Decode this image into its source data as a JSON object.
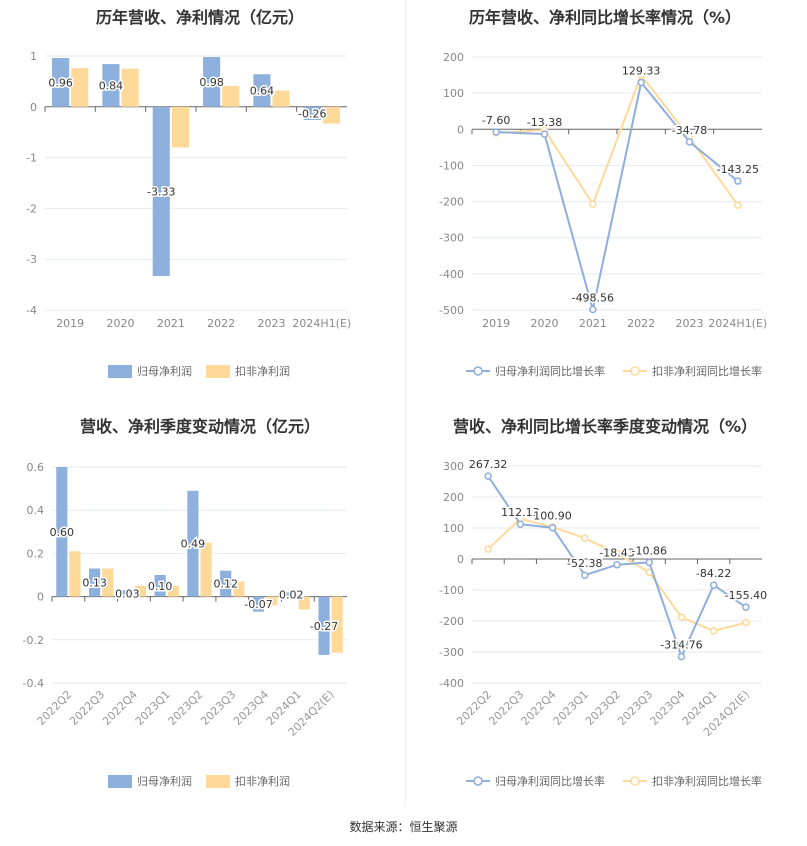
{
  "chart_data": [
    {
      "type": "bar",
      "title": "历年营收、净利情况（亿元）",
      "categories": [
        "2019",
        "2020",
        "2021",
        "2022",
        "2023",
        "2024H1(E)"
      ],
      "ylim": [
        -4,
        1
      ],
      "yticks": [
        1,
        0,
        -1,
        -2,
        -3,
        -4
      ],
      "grid": true,
      "legend": "bottom",
      "series": [
        {
          "name": "归母净利润",
          "values": [
            0.96,
            0.84,
            -3.33,
            0.98,
            0.64,
            -0.26
          ],
          "labels": [
            "0.96",
            "0.84",
            "-3.33",
            "0.98",
            "0.64",
            "-0.26"
          ],
          "color": "#8eb0dc"
        },
        {
          "name": "扣非净利润",
          "values": [
            0.76,
            0.75,
            -0.8,
            0.41,
            0.32,
            -0.33
          ],
          "color": "#ffd99a"
        }
      ]
    },
    {
      "type": "line",
      "title": "历年营收、净利同比增长率情况（%）",
      "categories": [
        "2019",
        "2020",
        "2021",
        "2022",
        "2023",
        "2024H1(E)"
      ],
      "ylim": [
        -500,
        200
      ],
      "yticks": [
        200,
        100,
        0,
        -100,
        -200,
        -300,
        -400,
        -500
      ],
      "grid": true,
      "legend": "bottom",
      "series": [
        {
          "name": "归母净利润同比增长率",
          "values": [
            -7.6,
            -13.38,
            -498.56,
            129.33,
            -34.78,
            -143.25
          ],
          "labels": [
            "-7.60",
            "-13.38",
            "-498.56",
            "129.33",
            "-34.78",
            "-143.25"
          ],
          "color": "#8eaedd"
        },
        {
          "name": "扣非净利润同比增长率",
          "values": [
            -10,
            -2,
            -207,
            150,
            -23,
            -210
          ],
          "color": "#ffd99a"
        }
      ]
    },
    {
      "type": "bar",
      "title": "营收、净利季度变动情况（亿元）",
      "categories": [
        "2022Q2",
        "2022Q3",
        "2022Q4",
        "2023Q1",
        "2023Q2",
        "2023Q3",
        "2023Q4",
        "2024Q1",
        "2024Q2(E)"
      ],
      "ylim": [
        -0.4,
        0.6
      ],
      "yticks": [
        0.6,
        0.4,
        0.2,
        0,
        -0.2,
        -0.4
      ],
      "grid": true,
      "legend": "bottom",
      "series": [
        {
          "name": "归母净利润",
          "values": [
            0.6,
            0.13,
            0.03,
            0.1,
            0.49,
            0.12,
            -0.07,
            0.02,
            -0.27
          ],
          "labels": [
            "0.60",
            "0.13",
            "0.03",
            "0.10",
            "0.49",
            "0.12",
            "-0.07",
            "0.02",
            "-0.27"
          ],
          "color": "#8eb0dc"
        },
        {
          "name": "扣非净利润",
          "values": [
            0.21,
            0.13,
            0.05,
            0.05,
            0.25,
            0.07,
            -0.04,
            -0.06,
            -0.26
          ],
          "color": "#ffd99a"
        }
      ]
    },
    {
      "type": "line",
      "title": "营收、净利同比增长率季度变动情况（%）",
      "categories": [
        "2022Q2",
        "2022Q3",
        "2022Q4",
        "2023Q1",
        "2023Q2",
        "2023Q3",
        "2023Q4",
        "2024Q1",
        "2024Q2(E)"
      ],
      "ylim": [
        -400,
        300
      ],
      "yticks": [
        300,
        200,
        100,
        0,
        -100,
        -200,
        -300,
        -400
      ],
      "grid": true,
      "legend": "bottom",
      "series": [
        {
          "name": "归母净利润同比增长率",
          "values": [
            267.32,
            112.13,
            100.9,
            -52.38,
            -18.43,
            -10.86,
            -314.76,
            -84.22,
            -155.4
          ],
          "labels": [
            "267.32",
            "112.13",
            "100.90",
            "-52.38",
            "-18.43",
            "-10.86",
            "-314.76",
            "-84.22",
            "-155.40"
          ],
          "color": "#8eaedd"
        },
        {
          "name": "扣非净利润同比增长率",
          "values": [
            32,
            130,
            103,
            67,
            18,
            -43,
            -188,
            -232,
            -205
          ],
          "color": "#ffd99a"
        }
      ]
    }
  ],
  "footer": {
    "source": "数据来源：恒生聚源"
  }
}
